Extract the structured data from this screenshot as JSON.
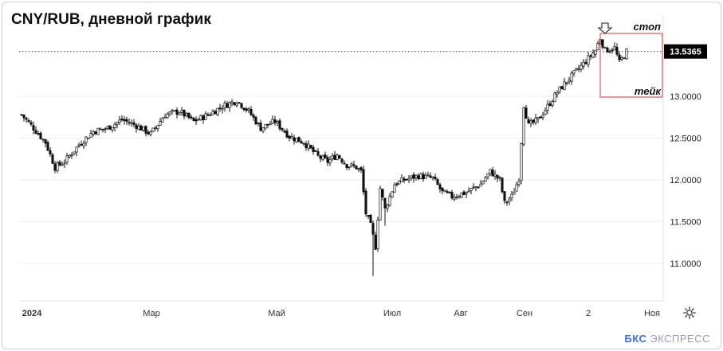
{
  "title": "CNY/RUB, дневной график",
  "brand": {
    "logo": "БКС",
    "name": "ЭКСПРЕСС"
  },
  "icons": {
    "settings": "gear-icon",
    "arrow": "arrow-down-icon"
  },
  "colors": {
    "candle": "#111111",
    "annotation_box": "#e05a5a",
    "gridline": "#eeeeee"
  },
  "annotations": {
    "stop_label": "стоп",
    "take_label": "тейк"
  },
  "current_price": {
    "value": 13.5365,
    "label": "13.5365"
  },
  "chart_data": {
    "type": "candlestick",
    "title": "CNY/RUB, дневной график",
    "y_ticks": [
      "11.0000",
      "11.5000",
      "12.0000",
      "12.5000",
      "13.0000"
    ],
    "y_tick_values": [
      11.0,
      11.5,
      12.0,
      12.5,
      13.0
    ],
    "x_ticks": [
      "2024",
      "Мар",
      "Май",
      "Июл",
      "Авг",
      "Сен",
      "2",
      "Ноя"
    ],
    "ylim": [
      10.55,
      13.9
    ],
    "grid": true,
    "close_anchors": [
      [
        0,
        12.78
      ],
      [
        5,
        12.62
      ],
      [
        10,
        12.45
      ],
      [
        14,
        12.15
      ],
      [
        18,
        12.22
      ],
      [
        24,
        12.42
      ],
      [
        30,
        12.58
      ],
      [
        36,
        12.62
      ],
      [
        42,
        12.72
      ],
      [
        48,
        12.65
      ],
      [
        54,
        12.55
      ],
      [
        60,
        12.78
      ],
      [
        66,
        12.82
      ],
      [
        72,
        12.7
      ],
      [
        78,
        12.78
      ],
      [
        84,
        12.88
      ],
      [
        90,
        12.95
      ],
      [
        95,
        12.82
      ],
      [
        100,
        12.62
      ],
      [
        106,
        12.7
      ],
      [
        112,
        12.52
      ],
      [
        118,
        12.45
      ],
      [
        124,
        12.28
      ],
      [
        128,
        12.22
      ],
      [
        132,
        12.3
      ],
      [
        136,
        12.18
      ],
      [
        140,
        12.15
      ],
      [
        142,
        12.1
      ],
      [
        144,
        11.6
      ],
      [
        146,
        11.45
      ],
      [
        148,
        11.2
      ],
      [
        150,
        11.9
      ],
      [
        152,
        11.65
      ],
      [
        154,
        11.8
      ],
      [
        156,
        11.95
      ],
      [
        160,
        12.0
      ],
      [
        166,
        12.05
      ],
      [
        172,
        12.02
      ],
      [
        176,
        11.85
      ],
      [
        180,
        11.8
      ],
      [
        186,
        11.85
      ],
      [
        192,
        11.95
      ],
      [
        196,
        12.1
      ],
      [
        200,
        12.0
      ],
      [
        202,
        11.72
      ],
      [
        205,
        11.8
      ],
      [
        208,
        12.02
      ],
      [
        210,
        12.9
      ],
      [
        212,
        12.65
      ],
      [
        216,
        12.72
      ],
      [
        220,
        12.88
      ],
      [
        224,
        13.05
      ],
      [
        228,
        13.18
      ],
      [
        232,
        13.3
      ],
      [
        236,
        13.42
      ],
      [
        240,
        13.55
      ],
      [
        242,
        13.7
      ],
      [
        244,
        13.55
      ],
      [
        248,
        13.58
      ],
      [
        250,
        13.4
      ],
      [
        253,
        13.54
      ]
    ],
    "spike_lows": [
      [
        147,
        10.85
      ],
      [
        152,
        11.45
      ]
    ],
    "num_candles": 254,
    "x_tick_index": {
      "2024": 0,
      "Мар": 52,
      "Май": 103,
      "Июл": 147,
      "Авг": 183,
      "Сен": 206,
      "2": 232,
      "Ноя": 265
    }
  }
}
